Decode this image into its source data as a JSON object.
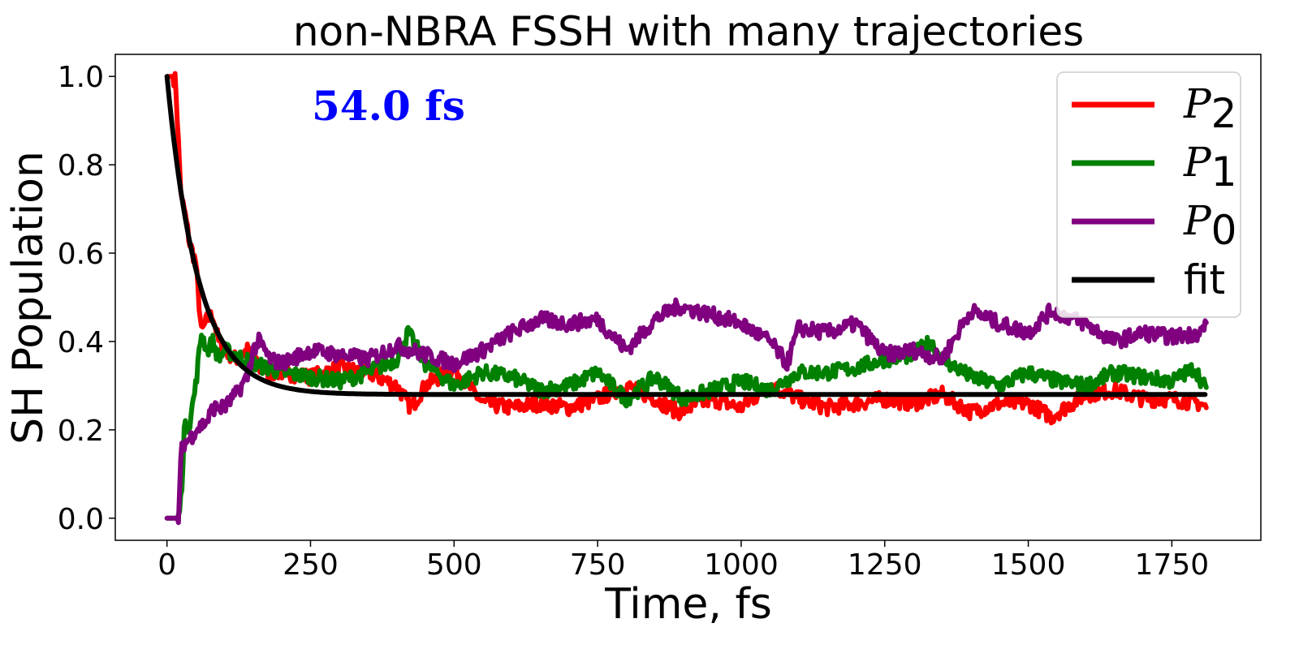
{
  "chart_data": {
    "type": "line",
    "title": "non-NBRA FSSH with many trajectories",
    "xlabel": "Time, fs",
    "ylabel": "SH Population",
    "xlim": [
      -90,
      1905
    ],
    "ylim": [
      -0.05,
      1.05
    ],
    "xticks": [
      0,
      250,
      500,
      750,
      1000,
      1250,
      1500,
      1750
    ],
    "yticks": [
      "0.0",
      "0.2",
      "0.4",
      "0.6",
      "0.8",
      "1.0"
    ],
    "annotation": {
      "text": "54.0 fs",
      "color": "#0000ff"
    },
    "legend": {
      "placement": "top-right",
      "entries": [
        {
          "base": "P",
          "sub": "2",
          "color": "#ff0000"
        },
        {
          "base": "P",
          "sub": "1",
          "color": "#008000"
        },
        {
          "base": "P",
          "sub": "0",
          "color": "#800080"
        },
        {
          "base": "fit",
          "sub": "",
          "color": "#000000"
        }
      ]
    },
    "series": [
      {
        "name": "P2",
        "color": "#ff0000",
        "x": [
          0,
          10,
          15,
          20,
          25,
          30,
          40,
          50,
          60,
          70,
          80,
          90,
          100,
          120,
          140,
          160,
          180,
          200,
          250,
          300,
          350,
          400,
          425,
          450,
          500,
          550,
          600,
          650,
          700,
          750,
          800,
          850,
          890,
          950,
          1000,
          1050,
          1100,
          1150,
          1200,
          1250,
          1300,
          1350,
          1400,
          1450,
          1500,
          1540,
          1600,
          1650,
          1700,
          1750,
          1800,
          1810
        ],
        "y": [
          1.0,
          1.0,
          0.99,
          0.85,
          0.72,
          0.7,
          0.62,
          0.58,
          0.42,
          0.45,
          0.46,
          0.4,
          0.38,
          0.36,
          0.38,
          0.34,
          0.33,
          0.33,
          0.32,
          0.34,
          0.33,
          0.3,
          0.25,
          0.3,
          0.34,
          0.26,
          0.25,
          0.26,
          0.25,
          0.27,
          0.3,
          0.27,
          0.24,
          0.27,
          0.25,
          0.3,
          0.27,
          0.25,
          0.26,
          0.27,
          0.26,
          0.28,
          0.24,
          0.26,
          0.26,
          0.23,
          0.28,
          0.29,
          0.27,
          0.27,
          0.26,
          0.25
        ]
      },
      {
        "name": "P1",
        "color": "#008000",
        "x": [
          0,
          20,
          25,
          30,
          40,
          50,
          60,
          70,
          80,
          90,
          100,
          120,
          150,
          200,
          250,
          300,
          350,
          400,
          420,
          450,
          500,
          550,
          600,
          650,
          700,
          750,
          800,
          850,
          900,
          950,
          1000,
          1050,
          1100,
          1150,
          1200,
          1250,
          1300,
          1330,
          1350,
          1400,
          1450,
          1500,
          1550,
          1600,
          1650,
          1700,
          1750,
          1790,
          1810
        ],
        "y": [
          0.0,
          0.0,
          0.05,
          0.2,
          0.22,
          0.3,
          0.42,
          0.38,
          0.4,
          0.36,
          0.38,
          0.37,
          0.35,
          0.33,
          0.32,
          0.31,
          0.33,
          0.36,
          0.42,
          0.35,
          0.3,
          0.33,
          0.32,
          0.29,
          0.3,
          0.33,
          0.27,
          0.32,
          0.27,
          0.29,
          0.31,
          0.29,
          0.33,
          0.33,
          0.34,
          0.36,
          0.37,
          0.4,
          0.36,
          0.32,
          0.3,
          0.33,
          0.31,
          0.3,
          0.33,
          0.32,
          0.31,
          0.34,
          0.29
        ]
      },
      {
        "name": "P0",
        "color": "#800080",
        "x": [
          0,
          20,
          25,
          30,
          40,
          50,
          60,
          70,
          80,
          100,
          120,
          140,
          150,
          160,
          180,
          200,
          250,
          300,
          350,
          400,
          450,
          500,
          550,
          600,
          650,
          700,
          750,
          800,
          850,
          890,
          950,
          1000,
          1050,
          1080,
          1100,
          1150,
          1200,
          1250,
          1300,
          1350,
          1400,
          1450,
          1500,
          1540,
          1600,
          1650,
          1700,
          1750,
          1800,
          1810
        ],
        "y": [
          0.0,
          0.0,
          0.15,
          0.17,
          0.18,
          0.2,
          0.21,
          0.22,
          0.25,
          0.25,
          0.28,
          0.32,
          0.38,
          0.4,
          0.36,
          0.35,
          0.38,
          0.37,
          0.36,
          0.39,
          0.37,
          0.35,
          0.38,
          0.42,
          0.45,
          0.44,
          0.45,
          0.38,
          0.45,
          0.48,
          0.46,
          0.44,
          0.4,
          0.35,
          0.43,
          0.42,
          0.44,
          0.37,
          0.38,
          0.36,
          0.47,
          0.44,
          0.42,
          0.47,
          0.44,
          0.4,
          0.42,
          0.41,
          0.42,
          0.44
        ]
      },
      {
        "name": "fit",
        "color": "#000000",
        "fit": {
          "tau": 54.0,
          "a0": 0.72,
          "c": 0.28
        },
        "x_start": 0,
        "x_end": 1810
      }
    ],
    "grid": false
  }
}
